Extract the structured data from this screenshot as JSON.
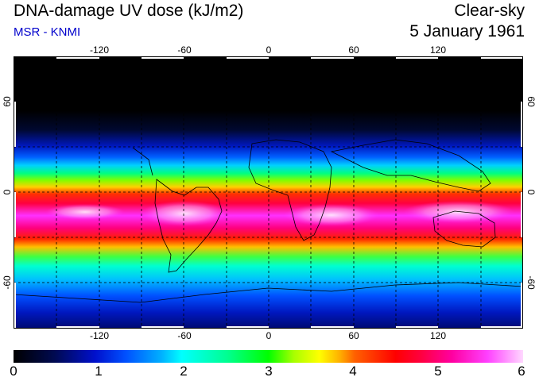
{
  "header": {
    "title": "DNA-damage UV dose (kJ/m2)",
    "source": "MSR - KNMI",
    "condition": "Clear-sky",
    "date": "5 January 1961"
  },
  "map": {
    "lon_labels": [
      "-120",
      "-60",
      "0",
      "60",
      "120"
    ],
    "lat_labels": [
      "60",
      "0",
      "-60"
    ]
  },
  "colorbar": {
    "labels": [
      "0",
      "1",
      "2",
      "3",
      "4",
      "5",
      "6"
    ],
    "min": 0,
    "max": 6,
    "unit": "kJ/m2"
  },
  "colors": {
    "subtitle": "#0000cc",
    "grid": "#000000"
  }
}
